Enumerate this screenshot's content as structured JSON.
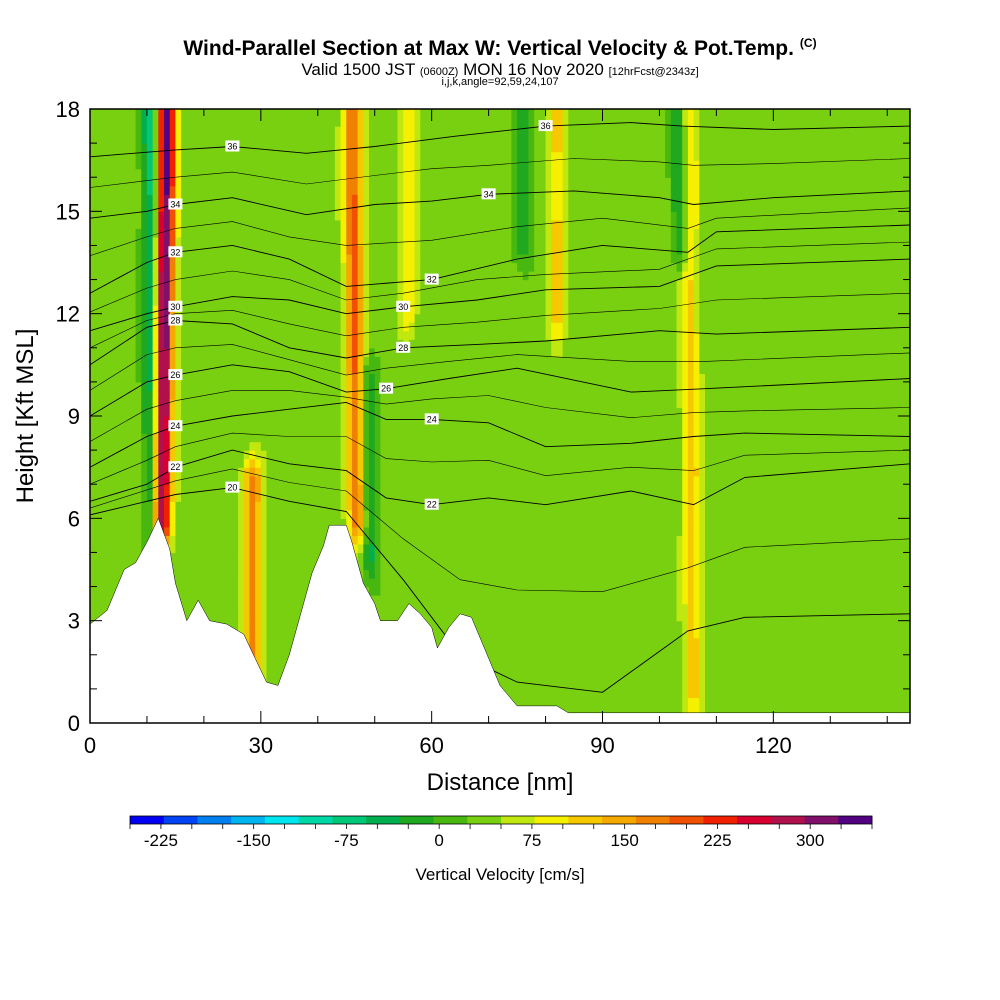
{
  "title": "Wind-Parallel Section at Max W: Vertical Velocity & Pot.Temp.",
  "copyright_mark": "(C)",
  "subtitle_main": "Valid 1500 JST",
  "subtitle_utc": "(0600Z)",
  "subtitle_date": "MON 16 Nov 2020",
  "subtitle_fcst": "[12hrFcst@2343z]",
  "params": "i,j,k,angle=92,59,24,107",
  "chart_data": {
    "type": "heatmap",
    "xlabel": "Distance [nm]",
    "ylabel": "Height [Kft MSL]",
    "xlim": [
      0,
      144
    ],
    "ylim": [
      0,
      18
    ],
    "x_ticks": [
      0,
      30,
      60,
      90,
      120
    ],
    "y_ticks": [
      0,
      3,
      6,
      9,
      12,
      15,
      18
    ],
    "grid": false,
    "colorbar": {
      "title": "Vertical Velocity [cm/s]",
      "min": -250,
      "max": 350,
      "step": 25,
      "tick_values": [
        -225,
        -150,
        -75,
        0,
        75,
        150,
        225,
        300
      ],
      "tick_labels": [
        "-225",
        "-150",
        "-75",
        "0",
        "75",
        "150",
        "225",
        "300"
      ],
      "colors": [
        "#0000f5",
        "#0044f5",
        "#0080f0",
        "#00b4f0",
        "#00e6f0",
        "#00d8a8",
        "#00c878",
        "#00b050",
        "#20a820",
        "#48b810",
        "#78d010",
        "#c0e810",
        "#f5f000",
        "#f5c800",
        "#f5a800",
        "#f08000",
        "#f05000",
        "#f02000",
        "#d80030",
        "#b0104c",
        "#80106a",
        "#500080"
      ]
    },
    "terrain_kft": [
      [
        0,
        2.9
      ],
      [
        3,
        3.3
      ],
      [
        6,
        4.5
      ],
      [
        8,
        4.7
      ],
      [
        10,
        5.3
      ],
      [
        12,
        6.0
      ],
      [
        14,
        5.1
      ],
      [
        15,
        4.1
      ],
      [
        17,
        3.0
      ],
      [
        19,
        3.6
      ],
      [
        21,
        3.0
      ],
      [
        24,
        2.9
      ],
      [
        27,
        2.6
      ],
      [
        29,
        1.9
      ],
      [
        31,
        1.2
      ],
      [
        33,
        1.1
      ],
      [
        35,
        2.0
      ],
      [
        37,
        3.2
      ],
      [
        39,
        4.4
      ],
      [
        41,
        5.2
      ],
      [
        42,
        5.8
      ],
      [
        45,
        5.8
      ],
      [
        46,
        5.3
      ],
      [
        48,
        4.1
      ],
      [
        50,
        3.5
      ],
      [
        51,
        3.0
      ],
      [
        54,
        3.0
      ],
      [
        56,
        3.5
      ],
      [
        58,
        3.2
      ],
      [
        60,
        2.8
      ],
      [
        61,
        2.2
      ],
      [
        63,
        2.8
      ],
      [
        65,
        3.2
      ],
      [
        67,
        3.1
      ],
      [
        70,
        1.9
      ],
      [
        72,
        1.1
      ],
      [
        75,
        0.5
      ],
      [
        82,
        0.5
      ],
      [
        84,
        0.3
      ],
      [
        144,
        0.3
      ]
    ],
    "updraft_cores": [
      {
        "x_base": 12.5,
        "x_top": 13.5,
        "y_from": 6,
        "y_to": 18,
        "w_max": 275
      },
      {
        "x_base": 47,
        "x_top": 46,
        "y_from": 6,
        "y_to": 18,
        "w_max": 150
      },
      {
        "x_base": 28.5,
        "x_top": 28.5,
        "y_from": 1.5,
        "y_to": 7,
        "w_max": 125
      },
      {
        "x_base": 106,
        "x_top": 105,
        "y_from": 1,
        "y_to": 18,
        "w_max": 75
      },
      {
        "x_base": 82,
        "x_top": 82,
        "y_from": 12,
        "y_to": 18,
        "w_max": 75
      },
      {
        "x_base": 56,
        "x_top": 56,
        "y_from": 12,
        "y_to": 18,
        "w_max": 50
      }
    ],
    "downdraft_cores": [
      {
        "x_base": 11,
        "x_top": 10.5,
        "y_from": 6,
        "y_to": 18,
        "w_min": -100
      },
      {
        "x_base": 49,
        "x_top": 48.5,
        "y_from": 5,
        "y_to": 10,
        "w_min": -75
      },
      {
        "x_base": 104,
        "x_top": 103.5,
        "y_from": 14,
        "y_to": 18,
        "w_min": -75
      },
      {
        "x_base": 76,
        "x_top": 76,
        "y_from": 14,
        "y_to": 18,
        "w_min": -50
      }
    ],
    "theta_contours": [
      {
        "level": 20,
        "label": "20",
        "points": [
          [
            0,
            6.1
          ],
          [
            15,
            6.7
          ],
          [
            25,
            6.9
          ],
          [
            35,
            6.5
          ],
          [
            45,
            6.2
          ],
          [
            55,
            4.2
          ],
          [
            65,
            2.0
          ],
          [
            75,
            1.2
          ],
          [
            90,
            0.9
          ],
          [
            105,
            2.7
          ],
          [
            115,
            3.1
          ],
          [
            144,
            3.2
          ]
        ]
      },
      {
        "level": 22,
        "label": "22",
        "points": [
          [
            0,
            6.5
          ],
          [
            10,
            7.0
          ],
          [
            15,
            7.5
          ],
          [
            25,
            8.0
          ],
          [
            35,
            7.6
          ],
          [
            45,
            7.4
          ],
          [
            52,
            6.6
          ],
          [
            60,
            6.4
          ],
          [
            70,
            6.6
          ],
          [
            80,
            6.4
          ],
          [
            95,
            6.8
          ],
          [
            106,
            6.4
          ],
          [
            115,
            7.2
          ],
          [
            144,
            7.6
          ]
        ]
      },
      {
        "level": 24,
        "label": "24",
        "points": [
          [
            0,
            7.5
          ],
          [
            10,
            8.4
          ],
          [
            15,
            8.7
          ],
          [
            25,
            9.0
          ],
          [
            35,
            9.2
          ],
          [
            45,
            9.4
          ],
          [
            52,
            8.9
          ],
          [
            60,
            8.9
          ],
          [
            70,
            8.8
          ],
          [
            80,
            8.1
          ],
          [
            95,
            8.2
          ],
          [
            106,
            8.4
          ],
          [
            115,
            8.5
          ],
          [
            144,
            8.4
          ]
        ]
      },
      {
        "level": 26,
        "label": "26",
        "points": [
          [
            0,
            9.0
          ],
          [
            10,
            10.0
          ],
          [
            15,
            10.2
          ],
          [
            25,
            10.5
          ],
          [
            35,
            10.3
          ],
          [
            45,
            9.7
          ],
          [
            52,
            9.8
          ],
          [
            63,
            10.1
          ],
          [
            75,
            10.4
          ],
          [
            95,
            9.7
          ],
          [
            108,
            9.8
          ],
          [
            144,
            10.1
          ]
        ]
      },
      {
        "level": 28,
        "label": "28",
        "points": [
          [
            0,
            10.5
          ],
          [
            10,
            11.6
          ],
          [
            15,
            11.8
          ],
          [
            25,
            11.7
          ],
          [
            35,
            11.0
          ],
          [
            45,
            10.7
          ],
          [
            55,
            11.0
          ],
          [
            68,
            11.1
          ],
          [
            80,
            11.2
          ],
          [
            100,
            11.5
          ],
          [
            110,
            11.4
          ],
          [
            144,
            11.6
          ]
        ]
      },
      {
        "level": 30,
        "label": "30",
        "points": [
          [
            0,
            11.5
          ],
          [
            10,
            12.0
          ],
          [
            15,
            12.2
          ],
          [
            25,
            12.5
          ],
          [
            35,
            12.4
          ],
          [
            45,
            12.0
          ],
          [
            55,
            12.2
          ],
          [
            68,
            12.4
          ],
          [
            80,
            12.7
          ],
          [
            100,
            12.8
          ],
          [
            110,
            13.4
          ],
          [
            144,
            13.6
          ]
        ]
      },
      {
        "level": 32,
        "label": "32",
        "points": [
          [
            0,
            12.6
          ],
          [
            10,
            13.5
          ],
          [
            15,
            13.8
          ],
          [
            25,
            14.0
          ],
          [
            35,
            13.6
          ],
          [
            45,
            12.8
          ],
          [
            60,
            13.0
          ],
          [
            75,
            13.6
          ],
          [
            90,
            14.0
          ],
          [
            105,
            13.8
          ],
          [
            110,
            14.4
          ],
          [
            144,
            14.6
          ]
        ]
      },
      {
        "level": 34,
        "label": "34",
        "points": [
          [
            0,
            14.8
          ],
          [
            10,
            15.0
          ],
          [
            15,
            15.2
          ],
          [
            25,
            15.4
          ],
          [
            38,
            14.9
          ],
          [
            50,
            15.2
          ],
          [
            60,
            15.3
          ],
          [
            70,
            15.5
          ],
          [
            85,
            15.6
          ],
          [
            100,
            15.4
          ],
          [
            106,
            15.2
          ],
          [
            120,
            15.4
          ],
          [
            144,
            15.6
          ]
        ]
      },
      {
        "level": 36,
        "label": "36",
        "points": [
          [
            0,
            16.6
          ],
          [
            15,
            16.8
          ],
          [
            25,
            16.9
          ],
          [
            38,
            16.7
          ],
          [
            50,
            16.9
          ],
          [
            64,
            17.2
          ],
          [
            80,
            17.5
          ],
          [
            95,
            17.6
          ],
          [
            104,
            17.5
          ],
          [
            120,
            17.4
          ],
          [
            144,
            17.5
          ]
        ]
      }
    ]
  }
}
